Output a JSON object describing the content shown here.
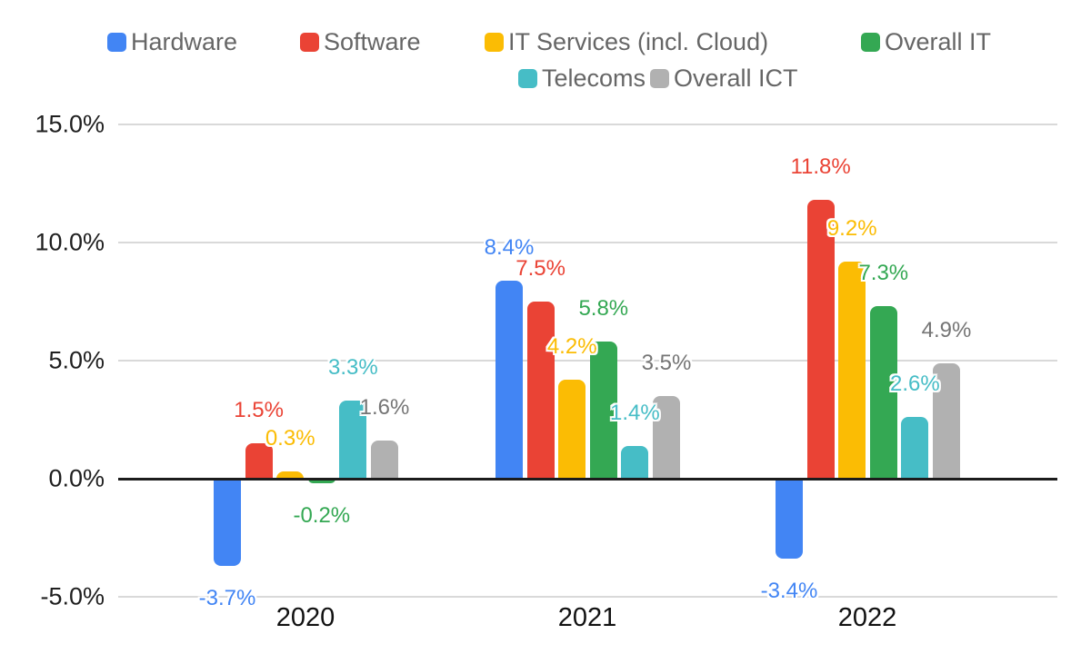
{
  "legend": {
    "rows": [
      {
        "items": [
          {
            "label": "Hardware",
            "color": "#4285F4"
          },
          {
            "label": "Software",
            "color": "#EA4335"
          },
          {
            "label": "IT Services (incl. Cloud)",
            "color": "#FBBC04"
          },
          {
            "label": "Overall IT",
            "color": "#34A853"
          }
        ]
      },
      {
        "items": [
          {
            "label": "Telecoms",
            "color": "#46BDC6"
          },
          {
            "label": "Overall ICT",
            "color": "#B1B1B1"
          }
        ]
      }
    ]
  },
  "chart_data": {
    "type": "bar",
    "title": "",
    "xlabel": "",
    "ylabel": "",
    "categories": [
      "2020",
      "2021",
      "2022"
    ],
    "series": [
      {
        "name": "Hardware",
        "color": "#4285F4",
        "label_color": "#4285F4",
        "values": [
          -3.7,
          8.4,
          -3.4
        ],
        "labels": [
          "-3.7%",
          "8.4%",
          "-3.4%"
        ]
      },
      {
        "name": "Software",
        "color": "#EA4335",
        "label_color": "#EA4335",
        "values": [
          1.5,
          7.5,
          11.8
        ],
        "labels": [
          "1.5%",
          "7.5%",
          "11.8%"
        ]
      },
      {
        "name": "IT Services (incl. Cloud)",
        "color": "#FBBC04",
        "label_color": "#FBBC04",
        "values": [
          0.3,
          4.2,
          9.2
        ],
        "labels": [
          "0.3%",
          "4.2%",
          "9.2%"
        ]
      },
      {
        "name": "Overall IT",
        "color": "#34A853",
        "label_color": "#34A853",
        "values": [
          -0.2,
          5.8,
          7.3
        ],
        "labels": [
          "-0.2%",
          "5.8%",
          "7.3%"
        ]
      },
      {
        "name": "Telecoms",
        "color": "#46BDC6",
        "label_color": "#46BDC6",
        "values": [
          3.3,
          1.4,
          2.6
        ],
        "labels": [
          "3.3%",
          "1.4%",
          "2.6%"
        ]
      },
      {
        "name": "Overall ICT",
        "color": "#B1B1B1",
        "label_color": "#757575",
        "values": [
          1.6,
          3.5,
          4.9
        ],
        "labels": [
          "1.6%",
          "3.5%",
          "4.9%"
        ]
      }
    ],
    "y_axis": {
      "ticks": [
        "15.0%",
        "10.0%",
        "5.0%",
        "0.0%",
        "-5.0%"
      ],
      "tick_values": [
        15,
        10,
        5,
        0,
        -5
      ],
      "ylim": [
        -5,
        15
      ],
      "grid": true
    },
    "legend_position": "top"
  }
}
